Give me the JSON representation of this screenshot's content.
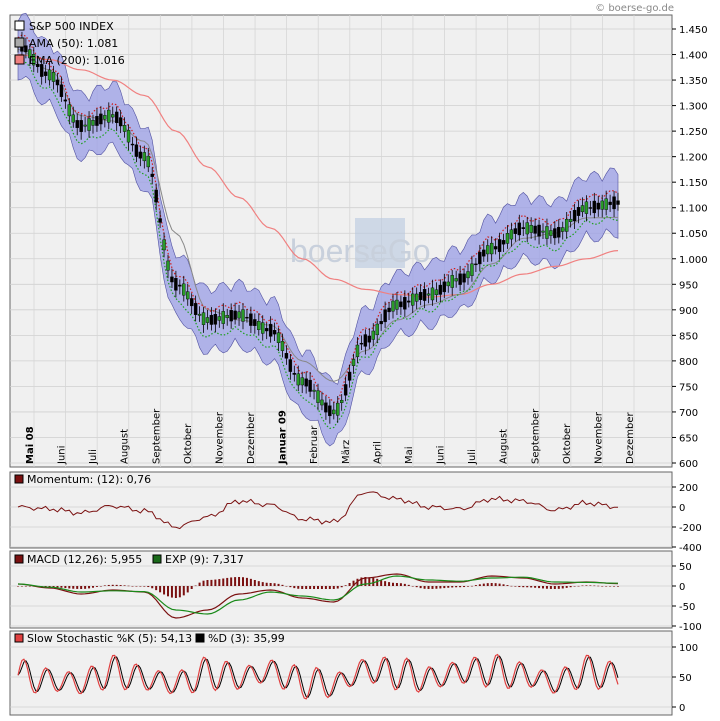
{
  "watermark": "© boerse-go.de",
  "main": {
    "legend": [
      {
        "label": "S&P 500 INDEX",
        "color": "#ffffff"
      },
      {
        "label": "AMA (50): 1.081",
        "color": "#aaaaaa"
      },
      {
        "label": "EMA (200): 1.016",
        "color": "#f08080"
      }
    ],
    "y_ticks": [
      "1.450",
      "1.400",
      "1.350",
      "1.300",
      "1.250",
      "1.200",
      "1.150",
      "1.100",
      "1.050",
      "1.000",
      "950",
      "900",
      "850",
      "800",
      "750",
      "700",
      "650",
      "600"
    ],
    "months": [
      "Mai 08",
      "Juni",
      "Juli",
      "August",
      "September",
      "Oktober",
      "November",
      "Dezember",
      "Januar 09",
      "Februar",
      "März",
      "April",
      "Mai",
      "Juni",
      "Juli",
      "August",
      "September",
      "Oktober",
      "November",
      "Dezember"
    ],
    "logo_text": "boerseGo"
  },
  "momentum": {
    "label": "Momentum: (12): 0,76",
    "color": "#7a1010",
    "y_ticks": [
      "200",
      "0",
      "-200",
      "-400"
    ]
  },
  "macd": {
    "legend": [
      {
        "label": "MACD (12,26): 5,955",
        "color": "#7a1010"
      },
      {
        "label": "EXP (9): 7,317",
        "color": "#1a6a1a"
      }
    ],
    "y_ticks": [
      "50",
      "0",
      "-50",
      "-100"
    ]
  },
  "stoch": {
    "legend": [
      {
        "label": "Slow Stochastic %K (5): 54,13",
        "color": "#e04040"
      },
      {
        "label": "%D (3): 35,99",
        "color": "#000000"
      }
    ],
    "y_ticks": [
      "100",
      "50",
      "0"
    ]
  },
  "chart_data": {
    "type": "line",
    "x": [
      "2008-05",
      "2008-06",
      "2008-07",
      "2008-08",
      "2008-09",
      "2008-10",
      "2008-11",
      "2008-12",
      "2009-01",
      "2009-02",
      "2009-03",
      "2009-04",
      "2009-05",
      "2009-06",
      "2009-07",
      "2009-08",
      "2009-09",
      "2009-10",
      "2009-11",
      "2009-12"
    ],
    "series": [
      {
        "name": "S&P 500 INDEX",
        "values": [
          1420,
          1360,
          1260,
          1280,
          1200,
          950,
          880,
          890,
          860,
          760,
          700,
          840,
          910,
          930,
          960,
          1020,
          1060,
          1050,
          1100,
          1110
        ]
      },
      {
        "name": "AMA (50)",
        "values": [
          1410,
          1370,
          1280,
          1270,
          1230,
          1050,
          900,
          880,
          870,
          800,
          760,
          820,
          880,
          910,
          930,
          990,
          1040,
          1050,
          1080,
          1081
        ]
      },
      {
        "name": "EMA (200)",
        "values": [
          1400,
          1390,
          1370,
          1350,
          1320,
          1250,
          1180,
          1120,
          1060,
          1000,
          960,
          940,
          930,
          925,
          930,
          950,
          970,
          985,
          1000,
          1016
        ]
      }
    ],
    "ylim": [
      600,
      1450
    ],
    "momentum": [
      0,
      -20,
      -60,
      10,
      -40,
      -200,
      -100,
      60,
      20,
      -120,
      -150,
      150,
      80,
      0,
      -20,
      80,
      60,
      -30,
      40,
      1
    ],
    "macd": [
      5,
      -5,
      -20,
      -10,
      -15,
      -80,
      -60,
      -20,
      -10,
      -30,
      -40,
      20,
      30,
      10,
      10,
      25,
      20,
      5,
      10,
      6
    ],
    "macd_exp": [
      5,
      -3,
      -15,
      -12,
      -14,
      -60,
      -70,
      -35,
      -15,
      -25,
      -35,
      5,
      25,
      15,
      12,
      20,
      22,
      10,
      9,
      7
    ],
    "stoch_k": [
      60,
      30,
      20,
      80,
      40,
      15,
      70,
      50,
      80,
      20,
      10,
      90,
      70,
      40,
      80,
      85,
      60,
      20,
      80,
      54
    ],
    "stoch_d": [
      55,
      35,
      25,
      70,
      45,
      20,
      60,
      55,
      70,
      30,
      15,
      80,
      75,
      45,
      70,
      80,
      65,
      30,
      70,
      36
    ]
  }
}
